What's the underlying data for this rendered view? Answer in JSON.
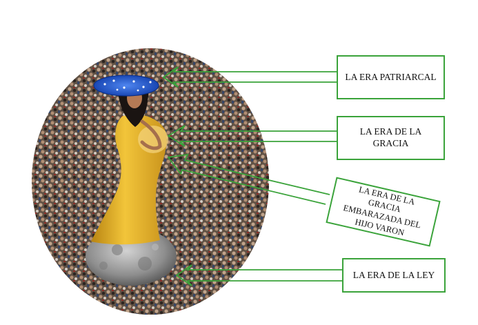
{
  "labels": {
    "patriarcal": "LA ERA PATRIARCAL",
    "gracia": "LA ERA DE LA GRACIA",
    "embarazada": "LA ERA DE LA GRACIA EMBARAZADA DEL HIJO VARON",
    "ley": "LA ERA DE LA LEY"
  },
  "colors": {
    "arrow": "#3aa33a",
    "box_border": "#3aa33a",
    "dress": "#e0b020",
    "moon": "#9a9a9a",
    "crown": "#2a5fd6"
  }
}
